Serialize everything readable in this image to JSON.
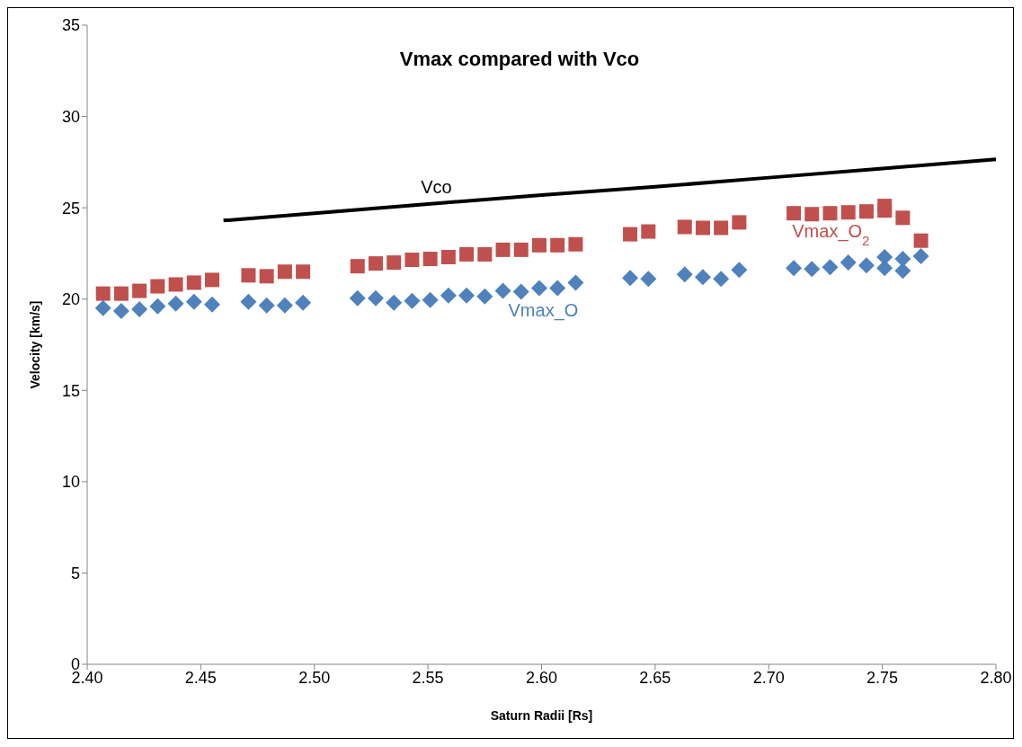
{
  "chart_data": {
    "type": "scatter",
    "title": "Vmax compared with Vco",
    "xlabel": "Saturn Radii [Rs]",
    "ylabel": "Velocity [km/s]",
    "xlim": [
      2.4,
      2.8
    ],
    "xticks": [
      {
        "value": 2.4,
        "label": "2.40"
      },
      {
        "value": 2.45,
        "label": "2.45"
      },
      {
        "value": 2.5,
        "label": "2.50"
      },
      {
        "value": 2.55,
        "label": "2.55"
      },
      {
        "value": 2.6,
        "label": "2.60"
      },
      {
        "value": 2.65,
        "label": "2.65"
      },
      {
        "value": 2.7,
        "label": "2.70"
      },
      {
        "value": 2.75,
        "label": "2.75"
      },
      {
        "value": 2.8,
        "label": "2.80"
      }
    ],
    "ylim": [
      0,
      35
    ],
    "yticks": [
      0,
      5,
      10,
      15,
      20,
      25,
      30,
      35
    ],
    "series": [
      {
        "name": "Vco",
        "type": "line",
        "color": "#000000",
        "marker": "none",
        "line_style": "solid",
        "x": [
          2.46,
          2.5,
          2.55,
          2.6,
          2.65,
          2.7,
          2.75,
          2.8
        ],
        "values": [
          24.3,
          24.7,
          25.2,
          25.7,
          26.15,
          26.65,
          27.15,
          27.65
        ]
      },
      {
        "name": "Vmax_O$_{2}$",
        "color": "#c0504d",
        "marker": "square",
        "x": [
          2.407,
          2.415,
          2.423,
          2.431,
          2.439,
          2.447,
          2.455,
          2.471,
          2.479,
          2.487,
          2.495,
          2.519,
          2.527,
          2.535,
          2.543,
          2.551,
          2.559,
          2.567,
          2.575,
          2.583,
          2.591,
          2.599,
          2.607,
          2.615,
          2.639,
          2.647,
          2.663,
          2.671,
          2.679,
          2.687,
          2.711,
          2.719,
          2.727,
          2.735,
          2.743,
          2.751,
          2.751,
          2.759,
          2.767
        ],
        "values": [
          20.3,
          20.3,
          20.45,
          20.7,
          20.8,
          20.9,
          21.05,
          21.3,
          21.25,
          21.5,
          21.5,
          21.8,
          21.95,
          22.0,
          22.15,
          22.2,
          22.3,
          22.45,
          22.45,
          22.7,
          22.7,
          22.95,
          22.95,
          23.0,
          23.55,
          23.7,
          23.95,
          23.9,
          23.9,
          24.2,
          24.7,
          24.65,
          24.7,
          24.75,
          24.8,
          24.85,
          25.1,
          24.45,
          23.2
        ]
      },
      {
        "name": "Vmax_O",
        "color": "#4f81bd",
        "marker": "diamond",
        "x": [
          2.407,
          2.415,
          2.423,
          2.431,
          2.439,
          2.447,
          2.455,
          2.471,
          2.479,
          2.487,
          2.495,
          2.519,
          2.527,
          2.535,
          2.543,
          2.551,
          2.559,
          2.567,
          2.575,
          2.583,
          2.591,
          2.599,
          2.607,
          2.615,
          2.639,
          2.647,
          2.663,
          2.671,
          2.679,
          2.687,
          2.711,
          2.719,
          2.727,
          2.735,
          2.743,
          2.751,
          2.751,
          2.759,
          2.759,
          2.767
        ],
        "values": [
          19.5,
          19.35,
          19.45,
          19.6,
          19.75,
          19.85,
          19.7,
          19.85,
          19.65,
          19.65,
          19.8,
          20.05,
          20.05,
          19.8,
          19.9,
          19.95,
          20.2,
          20.2,
          20.15,
          20.45,
          20.4,
          20.6,
          20.6,
          20.9,
          21.15,
          21.1,
          21.35,
          21.2,
          21.1,
          21.6,
          21.7,
          21.65,
          21.75,
          22.0,
          21.85,
          21.7,
          22.3,
          21.55,
          22.2,
          22.35
        ]
      }
    ]
  }
}
